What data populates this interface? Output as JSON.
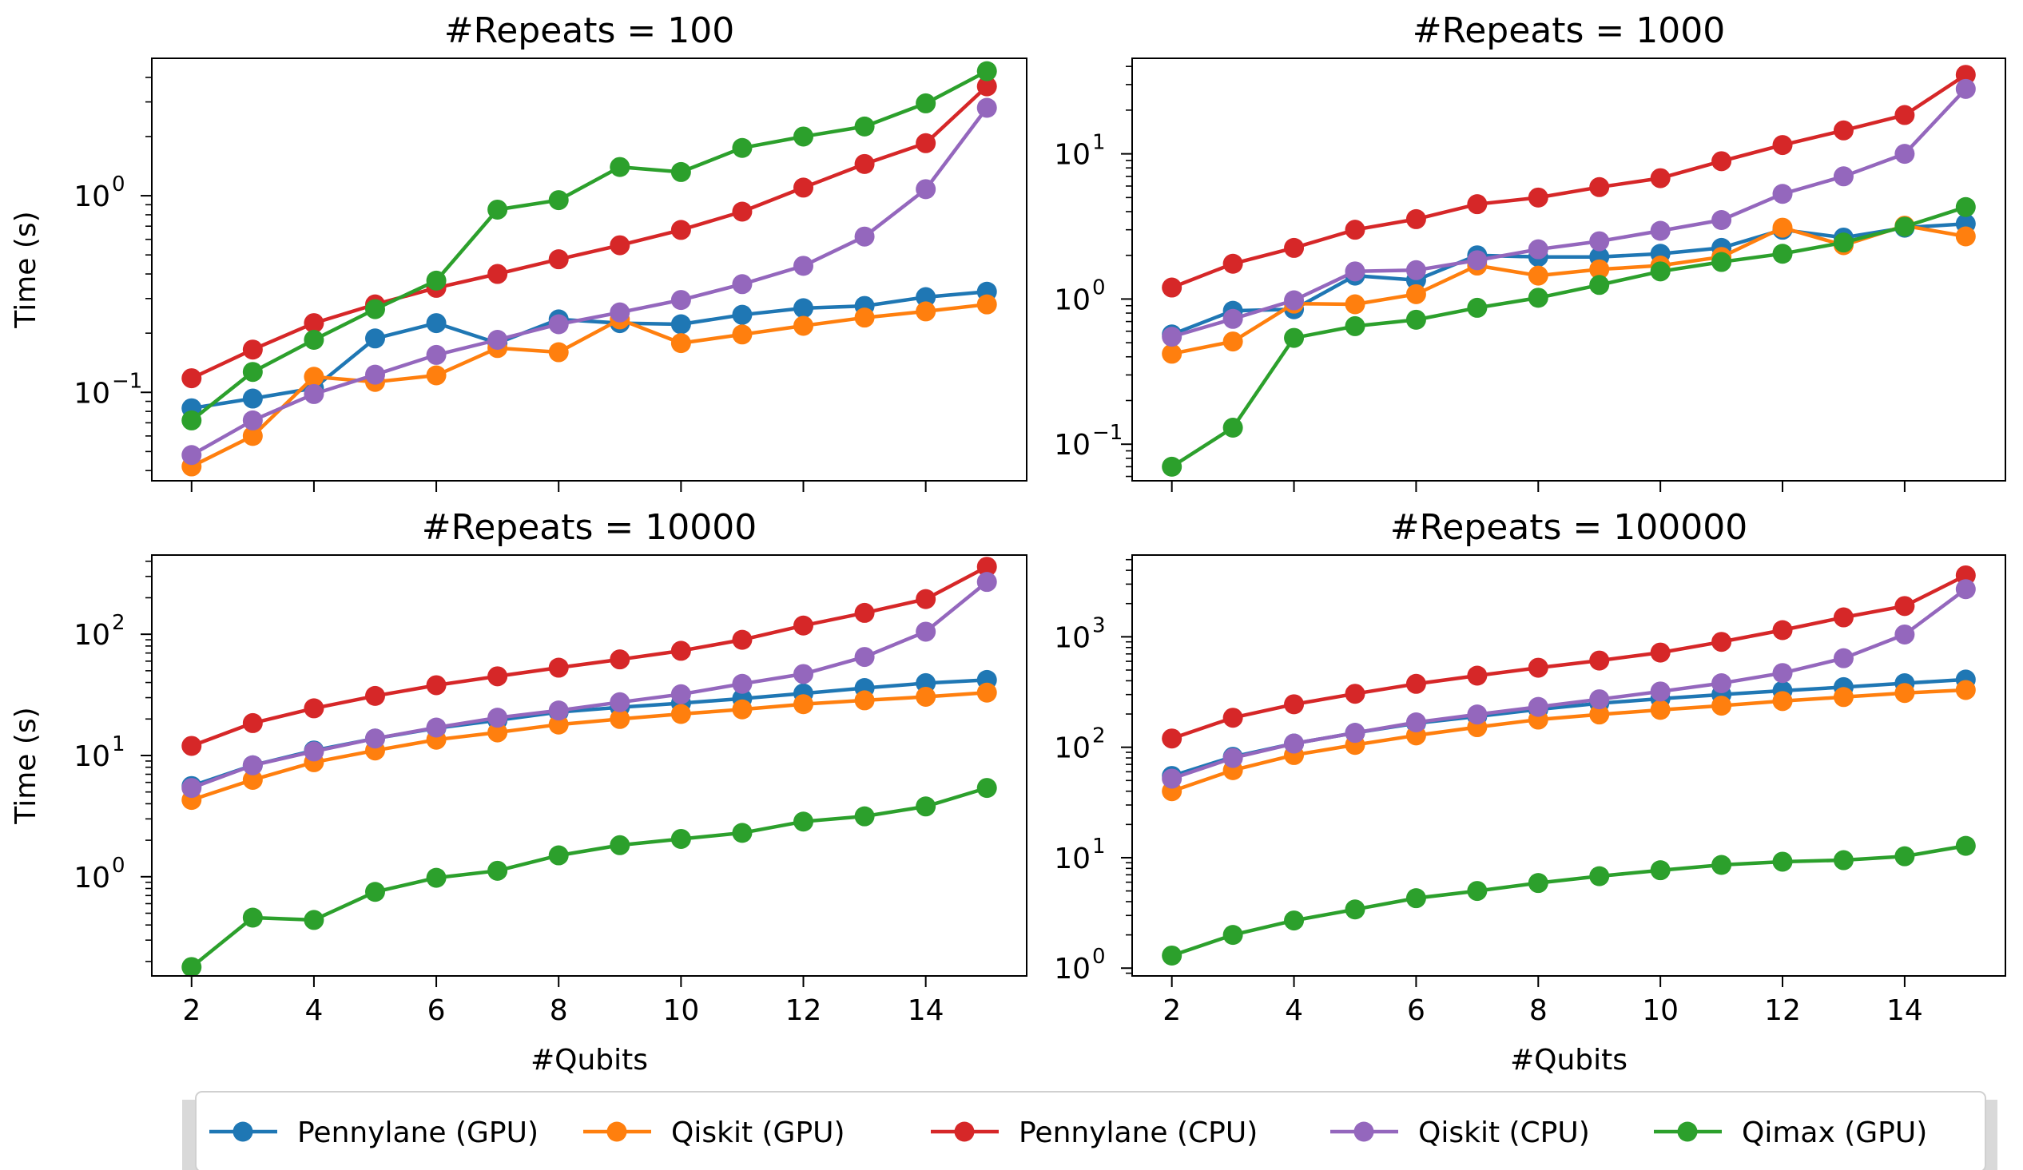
{
  "figure": {
    "legend": [
      {
        "name": "Pennylane (GPU)",
        "color": "#1f77b4"
      },
      {
        "name": "Qiskit (GPU)",
        "color": "#ff7f0e"
      },
      {
        "name": "Pennylane (CPU)",
        "color": "#d62728"
      },
      {
        "name": "Qiskit (CPU)",
        "color": "#9467bd"
      },
      {
        "name": "Qimax (GPU)",
        "color": "#2ca02c"
      }
    ]
  },
  "chart_data": [
    {
      "type": "line",
      "title": "#Repeats = 100",
      "xlabel": "",
      "ylabel": "Time (s)",
      "yscale": "log",
      "ylim": [
        0.0355,
        5.0
      ],
      "xlim": [
        1.35,
        15.65
      ],
      "x": [
        2,
        3,
        4,
        5,
        6,
        7,
        8,
        9,
        10,
        11,
        12,
        13,
        14,
        15
      ],
      "xticks": [
        2,
        4,
        6,
        8,
        10,
        12,
        14
      ],
      "show_xticklabels": false,
      "yticks": [
        {
          "value": 0.1,
          "base": "10",
          "exp": "−1"
        },
        {
          "value": 1,
          "base": "10",
          "exp": "0"
        }
      ],
      "series": [
        {
          "name": "Pennylane (GPU)",
          "values": [
            0.083,
            0.093,
            0.105,
            0.188,
            0.225,
            0.178,
            0.235,
            0.225,
            0.222,
            0.248,
            0.268,
            0.275,
            0.305,
            0.325
          ]
        },
        {
          "name": "Qiskit (GPU)",
          "values": [
            0.042,
            0.06,
            0.12,
            0.113,
            0.122,
            0.168,
            0.16,
            0.235,
            0.178,
            0.197,
            0.218,
            0.24,
            0.258,
            0.28
          ]
        },
        {
          "name": "Pennylane (CPU)",
          "values": [
            0.118,
            0.165,
            0.225,
            0.28,
            0.34,
            0.4,
            0.475,
            0.56,
            0.67,
            0.83,
            1.1,
            1.45,
            1.85,
            3.6
          ]
        },
        {
          "name": "Qiskit (CPU)",
          "values": [
            0.048,
            0.072,
            0.098,
            0.123,
            0.155,
            0.185,
            0.222,
            0.255,
            0.295,
            0.355,
            0.44,
            0.62,
            1.08,
            2.8
          ]
        },
        {
          "name": "Qimax (GPU)",
          "values": [
            0.072,
            0.127,
            0.185,
            0.265,
            0.37,
            0.85,
            0.95,
            1.4,
            1.32,
            1.75,
            2.0,
            2.25,
            2.95,
            4.3
          ]
        }
      ]
    },
    {
      "type": "line",
      "title": "#Repeats = 1000",
      "xlabel": "",
      "ylabel": "",
      "yscale": "log",
      "ylim": [
        0.056,
        45.5
      ],
      "xlim": [
        1.35,
        15.65
      ],
      "x": [
        2,
        3,
        4,
        5,
        6,
        7,
        8,
        9,
        10,
        11,
        12,
        13,
        14,
        15
      ],
      "xticks": [
        2,
        4,
        6,
        8,
        10,
        12,
        14
      ],
      "show_xticklabels": false,
      "yticks": [
        {
          "value": 0.1,
          "base": "10",
          "exp": "−1"
        },
        {
          "value": 1,
          "base": "10",
          "exp": "0"
        },
        {
          "value": 10,
          "base": "10",
          "exp": "1"
        }
      ],
      "series": [
        {
          "name": "Pennylane (GPU)",
          "values": [
            0.57,
            0.83,
            0.85,
            1.45,
            1.35,
            2.0,
            1.95,
            1.95,
            2.05,
            2.25,
            3.0,
            2.65,
            3.1,
            3.3
          ]
        },
        {
          "name": "Qiskit (GPU)",
          "values": [
            0.42,
            0.51,
            0.93,
            0.92,
            1.08,
            1.7,
            1.45,
            1.6,
            1.7,
            1.95,
            3.1,
            2.35,
            3.2,
            2.7
          ]
        },
        {
          "name": "Pennylane (CPU)",
          "values": [
            1.2,
            1.75,
            2.25,
            3.0,
            3.55,
            4.5,
            5.0,
            5.9,
            6.8,
            8.9,
            11.5,
            14.5,
            18.5,
            35.0
          ]
        },
        {
          "name": "Qiskit (CPU)",
          "values": [
            0.55,
            0.73,
            0.98,
            1.55,
            1.58,
            1.85,
            2.2,
            2.5,
            2.95,
            3.5,
            5.3,
            7.0,
            10.0,
            28.0
          ]
        },
        {
          "name": "Qimax (GPU)",
          "values": [
            0.07,
            0.13,
            0.54,
            0.65,
            0.72,
            0.87,
            1.02,
            1.25,
            1.55,
            1.8,
            2.05,
            2.45,
            3.15,
            4.3
          ]
        }
      ]
    },
    {
      "type": "line",
      "title": "#Repeats = 10000",
      "xlabel": "#Qubits",
      "ylabel": "Time (s)",
      "yscale": "log",
      "ylim": [
        0.152,
        450
      ],
      "xlim": [
        1.35,
        15.65
      ],
      "x": [
        2,
        3,
        4,
        5,
        6,
        7,
        8,
        9,
        10,
        11,
        12,
        13,
        14,
        15
      ],
      "xticks": [
        2,
        4,
        6,
        8,
        10,
        12,
        14
      ],
      "show_xticklabels": true,
      "yticks": [
        {
          "value": 1,
          "base": "10",
          "exp": "0"
        },
        {
          "value": 10,
          "base": "10",
          "exp": "1"
        },
        {
          "value": 100,
          "base": "10",
          "exp": "2"
        }
      ],
      "series": [
        {
          "name": "Pennylane (GPU)",
          "values": [
            5.6,
            8.3,
            11.0,
            13.8,
            16.8,
            19.5,
            22.8,
            25.0,
            27.0,
            29.5,
            32.5,
            36.0,
            39.5,
            42.0
          ]
        },
        {
          "name": "Qiskit (GPU)",
          "values": [
            4.3,
            6.3,
            8.8,
            11.0,
            13.5,
            15.5,
            18.0,
            20.0,
            22.0,
            24.0,
            26.5,
            28.5,
            30.5,
            33.0
          ]
        },
        {
          "name": "Pennylane (CPU)",
          "values": [
            12.0,
            18.5,
            24.5,
            31.0,
            38.0,
            45.0,
            53.0,
            62.0,
            73.0,
            90.0,
            118.0,
            150.0,
            195.0,
            360.0
          ]
        },
        {
          "name": "Qiskit (CPU)",
          "values": [
            5.4,
            8.3,
            10.8,
            13.8,
            17.0,
            20.5,
            23.5,
            27.5,
            32.0,
            39.0,
            47.0,
            65.0,
            105.0,
            270.0
          ]
        },
        {
          "name": "Qimax (GPU)",
          "values": [
            0.18,
            0.46,
            0.44,
            0.75,
            0.98,
            1.12,
            1.5,
            1.82,
            2.05,
            2.3,
            2.85,
            3.15,
            3.8,
            5.4
          ]
        }
      ]
    },
    {
      "type": "line",
      "title": "#Repeats = 100000",
      "xlabel": "#Qubits",
      "ylabel": "",
      "yscale": "log",
      "ylim": [
        0.85,
        5500
      ],
      "xlim": [
        1.35,
        15.65
      ],
      "x": [
        2,
        3,
        4,
        5,
        6,
        7,
        8,
        9,
        10,
        11,
        12,
        13,
        14,
        15
      ],
      "xticks": [
        2,
        4,
        6,
        8,
        10,
        12,
        14
      ],
      "show_xticklabels": true,
      "yticks": [
        {
          "value": 1,
          "base": "10",
          "exp": "0"
        },
        {
          "value": 10,
          "base": "10",
          "exp": "1"
        },
        {
          "value": 100,
          "base": "10",
          "exp": "2"
        },
        {
          "value": 1000,
          "base": "10",
          "exp": "3"
        }
      ],
      "series": [
        {
          "name": "Pennylane (GPU)",
          "values": [
            55,
            82,
            108,
            135,
            165,
            190,
            220,
            250,
            275,
            300,
            325,
            350,
            380,
            410
          ]
        },
        {
          "name": "Qiskit (GPU)",
          "values": [
            40,
            62,
            85,
            105,
            128,
            152,
            178,
            198,
            218,
            238,
            262,
            285,
            310,
            330
          ]
        },
        {
          "name": "Pennylane (CPU)",
          "values": [
            120,
            185,
            245,
            305,
            375,
            445,
            525,
            610,
            720,
            900,
            1150,
            1500,
            1900,
            3600
          ]
        },
        {
          "name": "Qiskit (CPU)",
          "values": [
            52,
            80,
            108,
            135,
            168,
            198,
            232,
            272,
            320,
            380,
            470,
            640,
            1050,
            2700
          ]
        },
        {
          "name": "Qimax (GPU)",
          "values": [
            1.3,
            2.0,
            2.7,
            3.4,
            4.3,
            5.0,
            5.9,
            6.8,
            7.7,
            8.6,
            9.2,
            9.5,
            10.3,
            12.8
          ]
        }
      ]
    }
  ]
}
